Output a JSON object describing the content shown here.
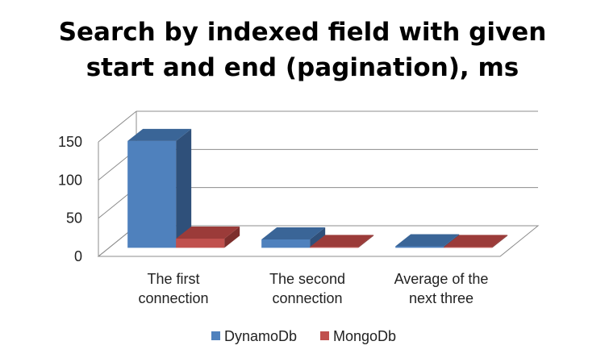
{
  "chart_data": {
    "type": "bar",
    "title_line1": "Search by indexed field with given",
    "title_line2": "start and end (pagination), ms",
    "categories": [
      [
        "The first",
        "connection"
      ],
      [
        "The second",
        "connection"
      ],
      [
        "Average of the",
        "next three"
      ]
    ],
    "series": [
      {
        "name": "DynamoDb",
        "values": [
          140,
          11,
          2
        ],
        "color": "#4F81BD",
        "side_color": "#2F507A",
        "top_color": "#3A6597"
      },
      {
        "name": "MongoDb",
        "values": [
          12,
          1,
          1
        ],
        "color": "#C0504D",
        "side_color": "#7D2E2C",
        "top_color": "#9B3B39"
      }
    ],
    "yticks": [
      0,
      50,
      100,
      150
    ],
    "ylim": [
      0,
      150
    ],
    "grid": true,
    "legend_position": "bottom"
  }
}
